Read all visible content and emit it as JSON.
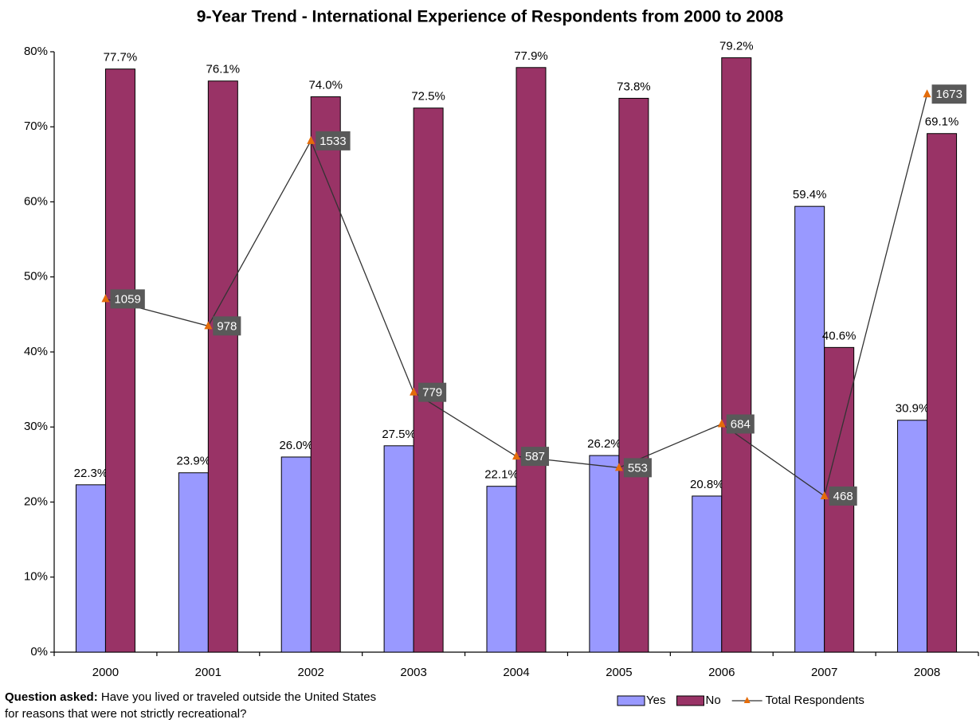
{
  "chart_data": {
    "type": "bar",
    "title": "9-Year Trend - International Experience of Respondents from 2000 to 2008",
    "categories": [
      "2000",
      "2001",
      "2002",
      "2003",
      "2004",
      "2005",
      "2006",
      "2007",
      "2008"
    ],
    "series": [
      {
        "name": "Yes",
        "color": "#9999ff",
        "values": [
          22.3,
          23.9,
          26.0,
          27.5,
          22.1,
          26.2,
          20.8,
          59.4,
          30.9
        ],
        "value_labels": [
          "22.3%",
          "23.9%",
          "26.0%",
          "27.5%",
          "22.1%",
          "26.2%",
          "20.8%",
          "59.4%",
          "30.9%"
        ]
      },
      {
        "name": "No",
        "color": "#993366",
        "values": [
          77.7,
          76.1,
          74.0,
          72.5,
          77.9,
          73.8,
          79.2,
          40.6,
          69.1
        ],
        "value_labels": [
          "77.7%",
          "76.1%",
          "74.0%",
          "72.5%",
          "77.9%",
          "73.8%",
          "79.2%",
          "40.6%",
          "69.1%"
        ]
      },
      {
        "name": "Total Respondents",
        "type": "line",
        "axis": "y2",
        "color": "#e46c0a",
        "line_color": "#333333",
        "values": [
          1059,
          978,
          1533,
          779,
          587,
          553,
          684,
          468,
          1673
        ]
      }
    ],
    "ylim": [
      0,
      80
    ],
    "yticks": [
      {
        "value": 0,
        "label": "0%"
      },
      {
        "value": 10,
        "label": "10%"
      },
      {
        "value": 20,
        "label": "20%"
      },
      {
        "value": 30,
        "label": "30%"
      },
      {
        "value": 40,
        "label": "40%"
      },
      {
        "value": 50,
        "label": "50%"
      },
      {
        "value": 60,
        "label": "60%"
      },
      {
        "value": 70,
        "label": "70%"
      },
      {
        "value": 80,
        "label": "80%"
      }
    ],
    "y2lim": [
      0,
      1800
    ],
    "question_label": "Question asked:",
    "question_lines": [
      "Have you lived or traveled outside the United States",
      "for reasons that were not strictly recreational?"
    ]
  }
}
